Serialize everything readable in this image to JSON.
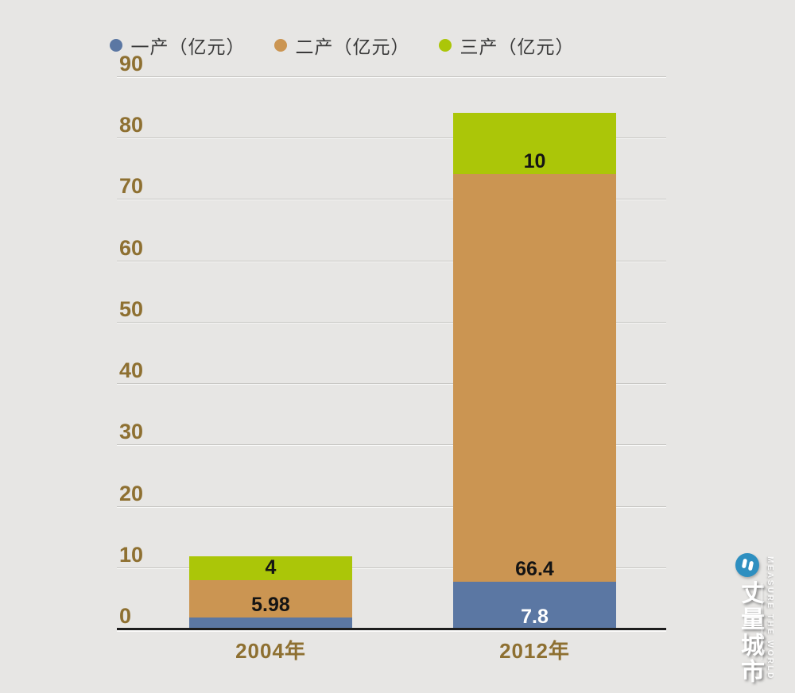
{
  "background_color": "#e7e6e4",
  "chart_data": {
    "type": "bar",
    "stacked": true,
    "title": "",
    "xlabel": "",
    "ylabel": "",
    "categories": [
      "2004年",
      "2012年"
    ],
    "series": [
      {
        "name": "一产（亿元）",
        "color": "#5b77a3",
        "values": [
          2,
          7.8
        ],
        "data_labels": [
          "",
          "7.8"
        ],
        "label_color": "#ffffff"
      },
      {
        "name": "二产（亿元）",
        "color": "#cb9552",
        "values": [
          5.98,
          66.4
        ],
        "data_labels": [
          "5.98",
          "66.4"
        ],
        "label_color": "#141414"
      },
      {
        "name": "三产（亿元）",
        "color": "#abc608",
        "values": [
          4,
          10
        ],
        "data_labels": [
          "4",
          "10"
        ],
        "label_color": "#141414"
      }
    ],
    "ylim": [
      0,
      90
    ],
    "yticks": [
      0,
      10,
      20,
      30,
      40,
      50,
      60,
      70,
      80,
      90
    ],
    "grid": true,
    "legend_position": "top",
    "data_label_position": "inside-base",
    "axis_tick_color": "#8e7031",
    "gridline_color": "#c6c5c2",
    "axis_line_color": "#1d1d1d",
    "legend_text_color": "#3a3a3a"
  },
  "watermark": {
    "chinese": "丈量城市",
    "english": "MEASURE THE WORLD",
    "logo_color": "#2e8fc0"
  }
}
